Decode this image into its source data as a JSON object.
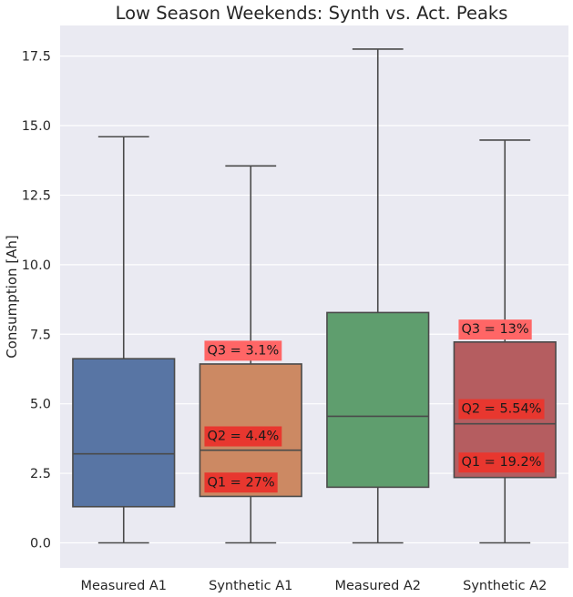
{
  "chart_data": {
    "type": "box",
    "title": "Low Season Weekends: Synth vs. Act. Peaks",
    "xlabel": "",
    "ylabel": "Consumption [Ah]",
    "ylim": [
      -0.9,
      18.6
    ],
    "yticks": [
      0.0,
      2.5,
      5.0,
      7.5,
      10.0,
      12.5,
      15.0,
      17.5
    ],
    "ytick_labels": [
      "0.0",
      "2.5",
      "5.0",
      "7.5",
      "10.0",
      "12.5",
      "15.0",
      "17.5"
    ],
    "grid": true,
    "legend": "none",
    "categories": [
      "Measured A1",
      "Synthetic A1",
      "Measured A2",
      "Synthetic A2"
    ],
    "boxes": [
      {
        "label": "Measured A1",
        "whisker_low": 0.0,
        "q1": 1.3,
        "median": 3.2,
        "q3": 6.62,
        "whisker_high": 14.6,
        "color": "#5875a4"
      },
      {
        "label": "Synthetic A1",
        "whisker_low": 0.0,
        "q1": 1.67,
        "median": 3.33,
        "q3": 6.43,
        "whisker_high": 13.55,
        "color": "#cc8963"
      },
      {
        "label": "Measured A2",
        "whisker_low": 0.0,
        "q1": 2.0,
        "median": 4.55,
        "q3": 8.28,
        "whisker_high": 17.75,
        "color": "#5f9e6e"
      },
      {
        "label": "Synthetic A2",
        "whisker_low": 0.0,
        "q1": 2.35,
        "median": 4.28,
        "q3": 7.22,
        "whisker_high": 14.48,
        "color": "#b55d60"
      }
    ],
    "annotations": [
      {
        "box": 1,
        "text": "Q3 = 3.1%",
        "y": 6.94
      },
      {
        "box": 1,
        "text": "Q2 = 4.4%",
        "y": 3.86
      },
      {
        "box": 1,
        "text": "Q1 = 27%",
        "y": 2.2
      },
      {
        "box": 3,
        "text": "Q3 = 13%",
        "y": 7.7
      },
      {
        "box": 3,
        "text": "Q2 = 5.54%",
        "y": 4.84
      },
      {
        "box": 3,
        "text": "Q1 = 19.2%",
        "y": 2.92
      }
    ],
    "annotation_color": "#ff6666",
    "annotation_color_on_box": "#e8372f"
  }
}
